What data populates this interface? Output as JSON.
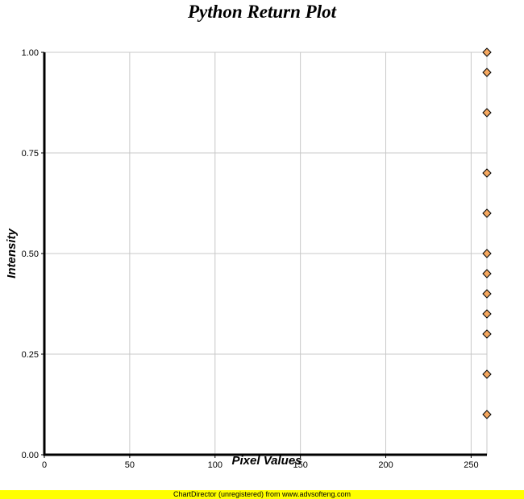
{
  "chart_data": {
    "type": "scatter",
    "title": "Python Return Plot",
    "xlabel": "Pixel Values",
    "ylabel": "Intensity",
    "xlim": [
      0,
      255
    ],
    "ylim": [
      0,
      1
    ],
    "x_ticks": [
      "0",
      "50",
      "100",
      "150",
      "200",
      "250"
    ],
    "y_ticks": [
      "0.00",
      "0.25",
      "0.50",
      "0.75",
      "1.00"
    ],
    "grid": true,
    "marker": "diamond",
    "marker_color": "#f5a860",
    "marker_edge_color": "#000000",
    "series": [
      {
        "x": [
          255,
          255,
          255,
          255,
          255,
          255,
          255,
          255,
          255,
          255,
          255,
          255
        ],
        "y": [
          1.0,
          0.95,
          0.85,
          0.7,
          0.6,
          0.5,
          0.45,
          0.4,
          0.35,
          0.3,
          0.2,
          0.1
        ]
      }
    ]
  },
  "footer": {
    "text": "ChartDirector (unregistered) from www.advsofteng.com",
    "color": "#ffff00"
  }
}
